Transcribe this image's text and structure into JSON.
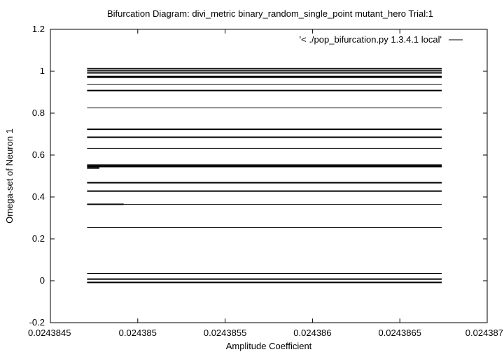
{
  "chart_data": {
    "type": "line",
    "title": "Bifurcation Diagram: divi_metric binary_random_single_point mutant_hero Trial:1",
    "xlabel": "Amplitude Coefficient",
    "ylabel": "Omega-set of Neuron 1",
    "legend": {
      "label": "'< ./pop_bifurcation.py 1.3.4.1 local'",
      "placement": "top-right"
    },
    "xlim": [
      0.0243845,
      0.024387
    ],
    "ylim": [
      -0.2,
      1.2
    ],
    "x_ticks": [
      {
        "value": 0.0243845,
        "label": "0.0243845"
      },
      {
        "value": 0.024385,
        "label": "0.024385"
      },
      {
        "value": 0.0243855,
        "label": "0.0243855"
      },
      {
        "value": 0.024386,
        "label": "0.024386"
      },
      {
        "value": 0.0243865,
        "label": "0.0243865"
      },
      {
        "value": 0.024387,
        "label": "0.024387"
      }
    ],
    "y_ticks": [
      {
        "value": -0.2,
        "label": "-0.2"
      },
      {
        "value": 0,
        "label": "0"
      },
      {
        "value": 0.2,
        "label": "0.2"
      },
      {
        "value": 0.4,
        "label": "0.4"
      },
      {
        "value": 0.6,
        "label": "0.6"
      },
      {
        "value": 0.8,
        "label": "0.8"
      },
      {
        "value": 1,
        "label": "1"
      },
      {
        "value": 1.2,
        "label": "1.2"
      }
    ],
    "grid": false,
    "series": [
      {
        "y": 1.012,
        "x": [
          0.02438471,
          0.02438674
        ],
        "weight": "bold"
      },
      {
        "y": 1.002,
        "x": [
          0.02438471,
          0.02438674
        ],
        "weight": "bold"
      },
      {
        "y": 0.992,
        "x": [
          0.02438471,
          0.02438674
        ],
        "weight": "bold"
      },
      {
        "y": 0.973,
        "x": [
          0.02438471,
          0.02438674
        ],
        "weight": "heavy"
      },
      {
        "y": 0.938,
        "x": [
          0.02438471,
          0.02438674
        ],
        "weight": "thin"
      },
      {
        "y": 0.908,
        "x": [
          0.02438471,
          0.02438674
        ],
        "weight": "bold"
      },
      {
        "y": 0.825,
        "x": [
          0.02438471,
          0.02438674
        ],
        "weight": "thin"
      },
      {
        "y": 0.723,
        "x": [
          0.02438471,
          0.02438674
        ],
        "weight": "bold"
      },
      {
        "y": 0.685,
        "x": [
          0.02438471,
          0.02438674
        ],
        "weight": "bold"
      },
      {
        "y": 0.632,
        "x": [
          0.02438471,
          0.02438674
        ],
        "weight": "thin"
      },
      {
        "y": 0.552,
        "x": [
          0.02438471,
          0.02438674
        ],
        "weight": "bold"
      },
      {
        "y": 0.545,
        "x": [
          0.02438471,
          0.02438674
        ],
        "weight": "bold"
      },
      {
        "y": 0.538,
        "x": [
          0.02438471,
          0.02438478
        ],
        "weight": "bold"
      },
      {
        "y": 0.468,
        "x": [
          0.02438471,
          0.02438674
        ],
        "weight": "bold"
      },
      {
        "y": 0.428,
        "x": [
          0.02438471,
          0.02438674
        ],
        "weight": "bold"
      },
      {
        "y": 0.365,
        "x": [
          0.02438471,
          0.02438492
        ],
        "weight": "bold"
      },
      {
        "y": 0.365,
        "x": [
          0.02438492,
          0.02438674
        ],
        "weight": "thin"
      },
      {
        "y": 0.255,
        "x": [
          0.02438471,
          0.02438674
        ],
        "weight": "thin"
      },
      {
        "y": 0.035,
        "x": [
          0.02438471,
          0.02438674
        ],
        "weight": "thin"
      },
      {
        "y": 0.008,
        "x": [
          0.02438471,
          0.02438674
        ],
        "weight": "bold"
      },
      {
        "y": -0.008,
        "x": [
          0.02438471,
          0.02438674
        ],
        "weight": "bold"
      }
    ]
  }
}
